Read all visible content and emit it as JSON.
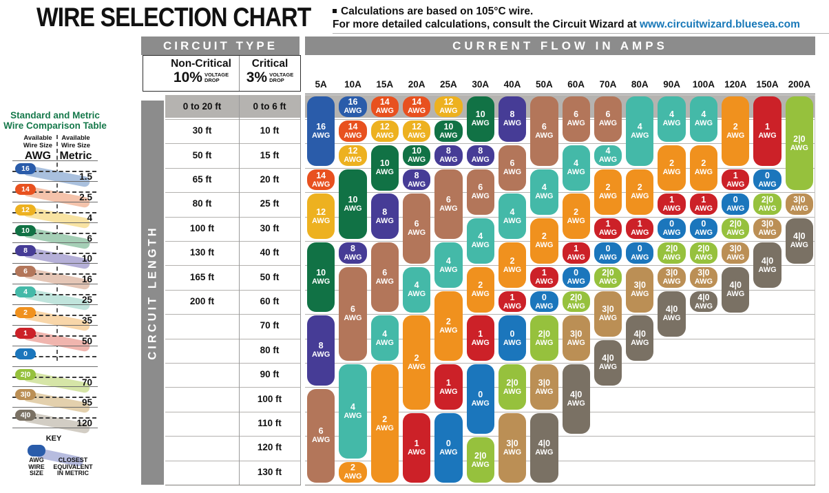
{
  "header": {
    "title": "WIRE SELECTION CHART",
    "note_line1": "Calculations are based on 105°C wire.",
    "note_line2": "For more detailed calculations, consult the Circuit Wizard at ",
    "link": "www.circuitwizard.bluesea.com"
  },
  "theme": {
    "header_bar": "#8c8c8c",
    "row_band": "#b5b3b0",
    "grid_line": "#b3b1ae",
    "table_border": "#2b2b2b",
    "link": "#1878b8",
    "sidebar_title": "#15784a",
    "text": "#111111"
  },
  "sidebar": {
    "title_line1": "Standard and Metric",
    "title_line2": "Wire Comparison Table",
    "awg_header": "Available\nWire Size",
    "awg_unit": "AWG",
    "metric_header": "Available\nWire Size",
    "metric_unit": "Metric",
    "rows": [
      {
        "awg": "16",
        "metric": "1.5",
        "color": "#2a5caa",
        "tint": "#a9c0de"
      },
      {
        "awg": "14",
        "metric": "2.5",
        "color": "#e8511f",
        "tint": "#f4c3ab"
      },
      {
        "awg": "12",
        "metric": "4",
        "color": "#edb120",
        "tint": "#f8e3a2"
      },
      {
        "awg": "10",
        "metric": "6",
        "color": "#117245",
        "tint": "#a5cfb6"
      },
      {
        "awg": "8",
        "metric": "10",
        "color": "#463c96",
        "tint": "#b5b0d8"
      },
      {
        "awg": "6",
        "metric": "16",
        "color": "#b3765a",
        "tint": "#e5c6b6"
      },
      {
        "awg": "4",
        "metric": "25",
        "color": "#44b9a8",
        "tint": "#c0e4dc"
      },
      {
        "awg": "2",
        "metric": "35",
        "color": "#f0911e",
        "tint": "#f8d6a9"
      },
      {
        "awg": "1",
        "metric": "50",
        "color": "#cc2128",
        "tint": "#f0b5ae"
      },
      {
        "awg": "0",
        "metric": "",
        "color": "#1b76bc",
        "tint": ""
      },
      {
        "awg": "2|0",
        "metric": "70",
        "color": "#96c13d",
        "tint": "#d6e5a7"
      },
      {
        "awg": "3|0",
        "metric": "95",
        "color": "#bb8f55",
        "tint": "#e3d0ad"
      },
      {
        "awg": "4|0",
        "metric": "120",
        "color": "#7a7164",
        "tint": "#d2cdc4"
      }
    ],
    "key": {
      "title": "KEY",
      "pill_label": "AWG\nWIRE\nSIZE",
      "swoosh_label": "CLOSEST\nEQUIVALENT\nIN METRIC"
    }
  },
  "table": {
    "circuit_type_label": "CIRCUIT TYPE",
    "current_flow_label": "CURRENT FLOW IN AMPS",
    "circuit_length_label": "CIRCUIT LENGTH",
    "non_critical": {
      "title": "Non-Critical",
      "pct": "10%",
      "sub": "VOLTAGE\nDROP"
    },
    "critical": {
      "title": "Critical",
      "pct": "3%",
      "sub": "VOLTAGE\nDROP"
    }
  },
  "chart_data": {
    "type": "table",
    "title": "WIRE SELECTION CHART",
    "x_axis_label": "CURRENT FLOW IN AMPS",
    "y_axis_label": "CIRCUIT LENGTH",
    "unit": "AWG",
    "columns_amps": [
      "5A",
      "10A",
      "15A",
      "20A",
      "25A",
      "30A",
      "40A",
      "50A",
      "60A",
      "70A",
      "80A",
      "90A",
      "100A",
      "120A",
      "150A",
      "200A"
    ],
    "rows_length": [
      {
        "non_critical": "0 to 20 ft",
        "critical": "0 to 6 ft"
      },
      {
        "non_critical": "30 ft",
        "critical": "10 ft"
      },
      {
        "non_critical": "50 ft",
        "critical": "15 ft"
      },
      {
        "non_critical": "65 ft",
        "critical": "20 ft"
      },
      {
        "non_critical": "80 ft",
        "critical": "25 ft"
      },
      {
        "non_critical": "100 ft",
        "critical": "30 ft"
      },
      {
        "non_critical": "130 ft",
        "critical": "40 ft"
      },
      {
        "non_critical": "165 ft",
        "critical": "50 ft"
      },
      {
        "non_critical": "200 ft",
        "critical": "60 ft"
      },
      {
        "non_critical": "",
        "critical": "70 ft"
      },
      {
        "non_critical": "",
        "critical": "80 ft"
      },
      {
        "non_critical": "",
        "critical": "90 ft"
      },
      {
        "non_critical": "",
        "critical": "100 ft"
      },
      {
        "non_critical": "",
        "critical": "110 ft"
      },
      {
        "non_critical": "",
        "critical": "120 ft"
      },
      {
        "non_critical": "",
        "critical": "130 ft"
      }
    ],
    "awg_colors": {
      "16": "#2a5caa",
      "14": "#e8511f",
      "12": "#edb120",
      "10": "#117245",
      "8": "#463c96",
      "6": "#b3765a",
      "4": "#44b9a8",
      "2": "#f0911e",
      "1": "#cc2128",
      "0": "#1b76bc",
      "2|0": "#96c13d",
      "3|0": "#bb8f55",
      "4|0": "#7a7164"
    },
    "wire_segments": [
      {
        "amp": "5A",
        "segments": [
          [
            "16",
            1,
            3
          ],
          [
            "14",
            4,
            1
          ],
          [
            "12",
            5,
            2
          ],
          [
            "10",
            7,
            3
          ],
          [
            "8",
            10,
            3
          ],
          [
            "6",
            13,
            4
          ]
        ]
      },
      {
        "amp": "10A",
        "segments": [
          [
            "16",
            1,
            1
          ],
          [
            "14",
            2,
            1
          ],
          [
            "12",
            3,
            1
          ],
          [
            "10",
            4,
            3
          ],
          [
            "8",
            7,
            1
          ],
          [
            "6",
            8,
            4
          ],
          [
            "4",
            12,
            4
          ],
          [
            "2",
            16,
            1
          ]
        ]
      },
      {
        "amp": "15A",
        "segments": [
          [
            "14",
            1,
            1
          ],
          [
            "12",
            2,
            1
          ],
          [
            "10",
            3,
            2
          ],
          [
            "8",
            5,
            2
          ],
          [
            "6",
            7,
            3
          ],
          [
            "4",
            10,
            2
          ],
          [
            "2",
            12,
            5
          ]
        ]
      },
      {
        "amp": "20A",
        "segments": [
          [
            "14",
            1,
            1
          ],
          [
            "12",
            2,
            1
          ],
          [
            "10",
            3,
            1
          ],
          [
            "8",
            4,
            1
          ],
          [
            "6",
            5,
            3
          ],
          [
            "4",
            8,
            2
          ],
          [
            "2",
            10,
            4
          ],
          [
            "1",
            14,
            3
          ]
        ]
      },
      {
        "amp": "25A",
        "segments": [
          [
            "12",
            1,
            1
          ],
          [
            "10",
            2,
            1
          ],
          [
            "8",
            3,
            1
          ],
          [
            "6",
            4,
            3
          ],
          [
            "4",
            7,
            2
          ],
          [
            "2",
            9,
            3
          ],
          [
            "1",
            12,
            2
          ],
          [
            "0",
            14,
            3
          ]
        ]
      },
      {
        "amp": "30A",
        "segments": [
          [
            "10",
            1,
            2
          ],
          [
            "8",
            3,
            1
          ],
          [
            "6",
            4,
            2
          ],
          [
            "4",
            6,
            2
          ],
          [
            "2",
            8,
            2
          ],
          [
            "1",
            10,
            2
          ],
          [
            "0",
            12,
            3
          ],
          [
            "2|0",
            15,
            2
          ]
        ]
      },
      {
        "amp": "40A",
        "segments": [
          [
            "8",
            1,
            2
          ],
          [
            "6",
            3,
            2
          ],
          [
            "4",
            5,
            2
          ],
          [
            "2",
            7,
            2
          ],
          [
            "1",
            9,
            1
          ],
          [
            "0",
            10,
            2
          ],
          [
            "2|0",
            12,
            2
          ],
          [
            "3|0",
            14,
            3
          ]
        ]
      },
      {
        "amp": "50A",
        "segments": [
          [
            "6",
            1,
            3
          ],
          [
            "4",
            4,
            2
          ],
          [
            "2",
            6,
            2
          ],
          [
            "1",
            8,
            1
          ],
          [
            "0",
            9,
            1
          ],
          [
            "2|0",
            10,
            2
          ],
          [
            "3|0",
            12,
            2
          ],
          [
            "4|0",
            14,
            3
          ]
        ]
      },
      {
        "amp": "60A",
        "segments": [
          [
            "6",
            1,
            2
          ],
          [
            "4",
            3,
            2
          ],
          [
            "2",
            5,
            2
          ],
          [
            "1",
            7,
            1
          ],
          [
            "0",
            8,
            1
          ],
          [
            "2|0",
            9,
            1
          ],
          [
            "3|0",
            10,
            2
          ],
          [
            "4|0",
            12,
            3
          ]
        ]
      },
      {
        "amp": "70A",
        "segments": [
          [
            "6",
            1,
            2
          ],
          [
            "4",
            3,
            1
          ],
          [
            "2",
            4,
            2
          ],
          [
            "1",
            6,
            1
          ],
          [
            "0",
            7,
            1
          ],
          [
            "2|0",
            8,
            1
          ],
          [
            "3|0",
            9,
            2
          ],
          [
            "4|0",
            11,
            2
          ]
        ]
      },
      {
        "amp": "80A",
        "segments": [
          [
            "4",
            1,
            3
          ],
          [
            "2",
            4,
            2
          ],
          [
            "1",
            6,
            1
          ],
          [
            "0",
            7,
            1
          ],
          [
            "3|0",
            8,
            2
          ],
          [
            "4|0",
            10,
            2
          ]
        ]
      },
      {
        "amp": "90A",
        "segments": [
          [
            "4",
            1,
            2
          ],
          [
            "2",
            3,
            2
          ],
          [
            "1",
            5,
            1
          ],
          [
            "0",
            6,
            1
          ],
          [
            "2|0",
            7,
            1
          ],
          [
            "3|0",
            8,
            1
          ],
          [
            "4|0",
            9,
            2
          ]
        ]
      },
      {
        "amp": "100A",
        "segments": [
          [
            "4",
            1,
            2
          ],
          [
            "2",
            3,
            2
          ],
          [
            "1",
            5,
            1
          ],
          [
            "0",
            6,
            1
          ],
          [
            "2|0",
            7,
            1
          ],
          [
            "3|0",
            8,
            1
          ],
          [
            "4|0",
            9,
            1
          ]
        ]
      },
      {
        "amp": "120A",
        "segments": [
          [
            "2",
            1,
            3
          ],
          [
            "1",
            4,
            1
          ],
          [
            "0",
            5,
            1
          ],
          [
            "2|0",
            6,
            1
          ],
          [
            "3|0",
            7,
            1
          ],
          [
            "4|0",
            8,
            2
          ]
        ]
      },
      {
        "amp": "150A",
        "segments": [
          [
            "1",
            1,
            3
          ],
          [
            "0",
            4,
            1
          ],
          [
            "2|0",
            5,
            1
          ],
          [
            "3|0",
            6,
            1
          ],
          [
            "4|0",
            7,
            2
          ]
        ]
      },
      {
        "amp": "200A",
        "segments": [
          [
            "2|0",
            1,
            4
          ],
          [
            "3|0",
            5,
            1
          ],
          [
            "4|0",
            6,
            2
          ]
        ]
      }
    ]
  }
}
